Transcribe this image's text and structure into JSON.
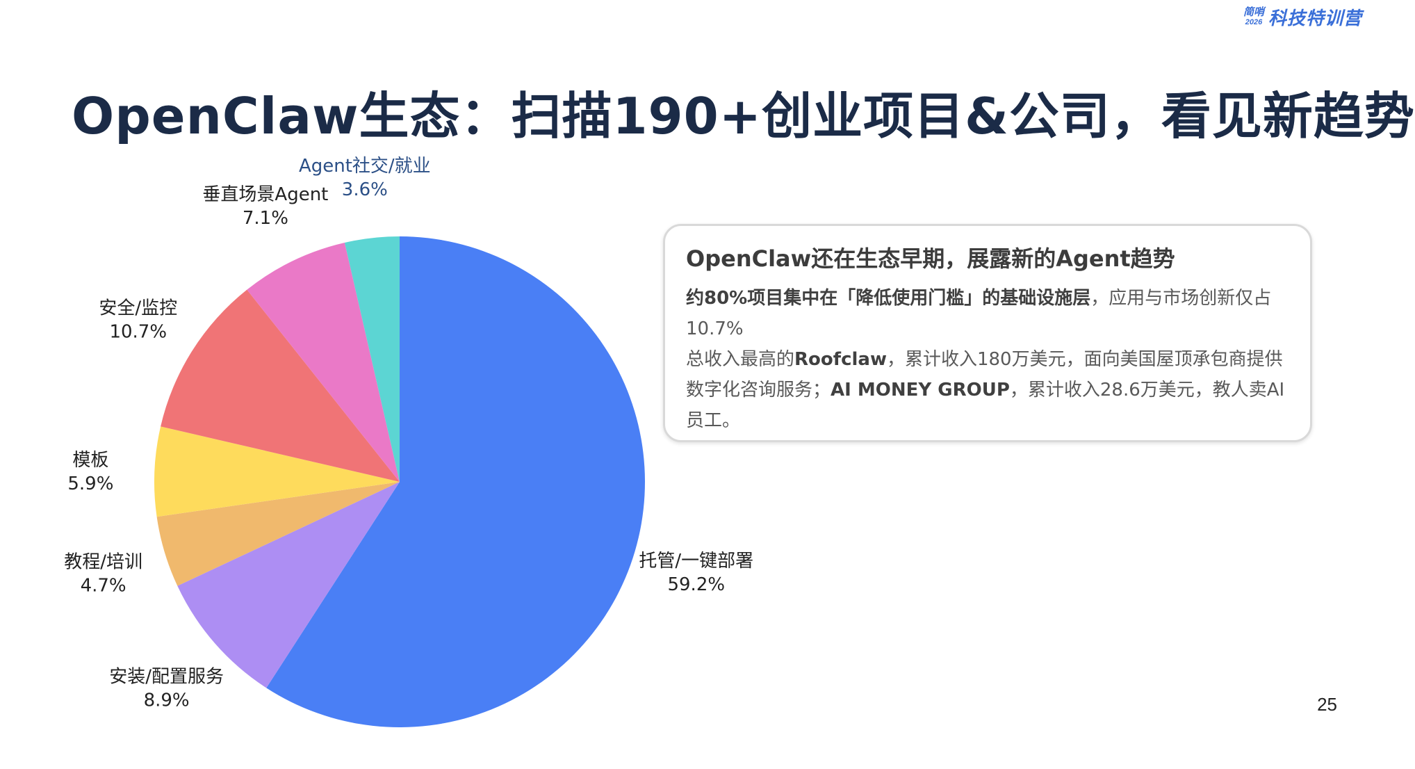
{
  "brand": {
    "mark_top": "简哨",
    "mark_year": "2026",
    "text": "科技特训营"
  },
  "title": "OpenClaw生态：扫描190+创业项目&公司，看见新趋势",
  "callout": {
    "title": "OpenClaw还在生态早期，展露新的Agent趋势",
    "p1_bold": "约80%项目集中在「降低使用门槛」的基础设施层",
    "p1_rest": "，应用与市场创新仅占10.7%",
    "p2_start": "总收入最高的",
    "p2_bold1": "Roofclaw",
    "p2_mid": "，累计收入180万美元，面向美国屋顶承包商提供数字化咨询服务；",
    "p2_bold2": "AI MONEY GROUP",
    "p2_end": "，累计收入28.6万美元，教人卖AI员工。"
  },
  "page_number": "25",
  "chart_data": {
    "type": "pie",
    "title": "",
    "slices": [
      {
        "label": "托管/一键部署",
        "value": 59.2,
        "value_label": "59.2%",
        "color": "#4a7ff5"
      },
      {
        "label": "安装/配置服务",
        "value": 8.9,
        "value_label": "8.9%",
        "color": "#ad8ef3"
      },
      {
        "label": "教程/培训",
        "value": 4.7,
        "value_label": "4.7%",
        "color": "#f0b96d"
      },
      {
        "label": "模板",
        "value": 5.9,
        "value_label": "5.9%",
        "color": "#fedb5c"
      },
      {
        "label": "安全/监控",
        "value": 10.7,
        "value_label": "10.7%",
        "color": "#f07476"
      },
      {
        "label": "垂直场景Agent",
        "value": 7.1,
        "value_label": "7.1%",
        "color": "#ea79c7"
      },
      {
        "label": "Agent社交/就业",
        "value": 3.6,
        "value_label": "3.6%",
        "color": "#5cd5d3"
      }
    ],
    "start": "12 o'clock",
    "direction": "clockwise",
    "legend": "none",
    "label_colors": [
      "#222222",
      "#222222",
      "#222222",
      "#222222",
      "#222222",
      "#222222",
      "#2b4f86"
    ]
  }
}
